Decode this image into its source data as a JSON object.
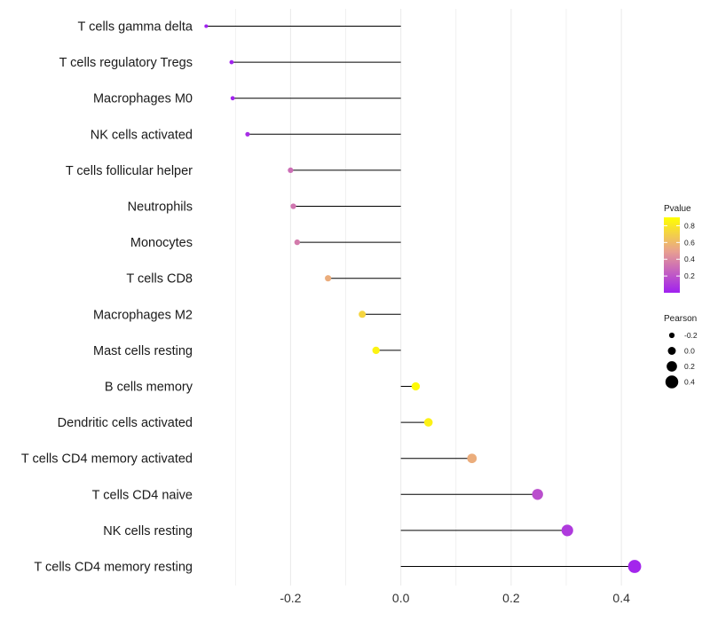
{
  "chart_data": {
    "type": "lollipop",
    "title": "",
    "xlabel": "",
    "ylabel": "",
    "xlim": [
      -0.36,
      0.44
    ],
    "xticks": [
      -0.2,
      0.0,
      0.2,
      0.4
    ],
    "xtick_labels": [
      "-0.2",
      "0.0",
      "0.2",
      "0.4"
    ],
    "grid": "vertical",
    "categories": [
      "T cells gamma delta",
      "T cells regulatory  Tregs",
      "Macrophages M0",
      "NK cells activated",
      "T cells follicular helper",
      "Neutrophils",
      "Monocytes",
      "T cells CD8",
      "Macrophages M2",
      "Mast cells resting",
      "B cells memory",
      "Dendritic cells activated",
      "T cells CD4 memory activated",
      "T cells CD4 naive",
      "NK cells resting",
      "T cells CD4 memory resting"
    ],
    "pearson": [
      -0.353,
      -0.307,
      -0.305,
      -0.278,
      -0.2,
      -0.195,
      -0.188,
      -0.132,
      -0.07,
      -0.045,
      0.027,
      0.05,
      0.129,
      0.248,
      0.302,
      0.424
    ],
    "pvalue": [
      0.0,
      0.01,
      0.01,
      0.05,
      0.3,
      0.33,
      0.35,
      0.55,
      0.72,
      0.85,
      0.88,
      0.84,
      0.55,
      0.18,
      0.1,
      0.02
    ],
    "legend_pvalue": {
      "title": "Pvalue",
      "ticks": [
        0.2,
        0.4,
        0.6,
        0.8
      ],
      "tick_labels": [
        "0.2",
        "0.4",
        "0.6",
        "0.8"
      ],
      "range": [
        0.0,
        0.9
      ],
      "color_low": "#a020f0",
      "color_mid": "#e8a090",
      "color_high": "#ffff00",
      "position": "right"
    },
    "legend_pearson": {
      "title": "Pearson",
      "values": [
        -0.2,
        0.0,
        0.2,
        0.4
      ],
      "labels": [
        "-0.2",
        "0.0",
        "0.2",
        "0.4"
      ],
      "position": "right"
    }
  }
}
